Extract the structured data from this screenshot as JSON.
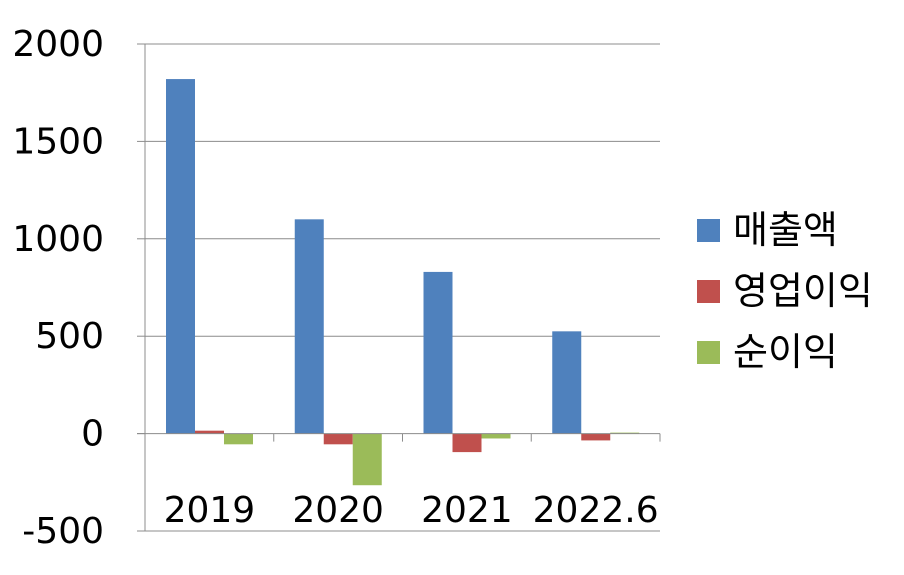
{
  "chart_data": {
    "type": "bar",
    "title": "",
    "xlabel": "",
    "ylabel": "",
    "categories": [
      "2019",
      "2020",
      "2021",
      "2022.6"
    ],
    "series": [
      {
        "name": "매출액",
        "color": "#4F81BD",
        "values": [
          1820,
          1100,
          830,
          525
        ]
      },
      {
        "name": "영업이익",
        "color": "#C0504D",
        "values": [
          15,
          -55,
          -95,
          -35
        ]
      },
      {
        "name": "순이익",
        "color": "#9BBB59",
        "values": [
          -55,
          -265,
          -25,
          5
        ]
      }
    ],
    "ylim": [
      -500,
      2000
    ],
    "yticks": [
      "2000",
      "1500",
      "1000",
      "500",
      "0",
      "-500"
    ],
    "ytick_values": [
      2000,
      1500,
      1000,
      500,
      0,
      -500
    ],
    "grid": true,
    "legend_position": "right"
  }
}
